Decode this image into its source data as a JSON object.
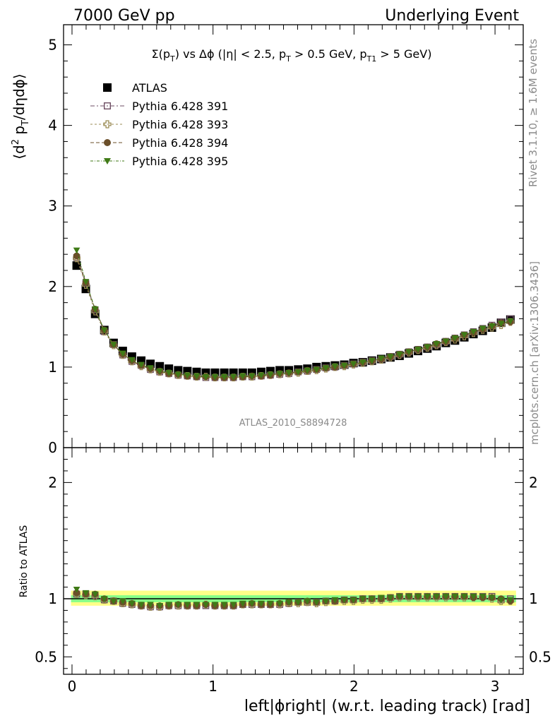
{
  "header": {
    "left": "7000 GeV pp",
    "right": "Underlying Event"
  },
  "side_labels": {
    "rivet": "Rivet 3.1.10, ≥ 1.6M events",
    "mcplots": "mcplots.cern.ch [arXiv:1306.3436]"
  },
  "chart_data": [
    {
      "type": "scatter",
      "title": "Σ(p_T) vs Δφ (|η| < 2.5, p_T > 0.5 GeV, p_T1 > 5 GeV)",
      "ylabel": "⟨d² p_T/dηdφ⟩",
      "xlabel": "",
      "watermark": "ATLAS_2010_S8894728",
      "xlim": [
        -0.06,
        3.2
      ],
      "ylim": [
        0,
        5.25
      ],
      "yticks": [
        0,
        1,
        2,
        3,
        4,
        5
      ],
      "legend_position": "top-left",
      "x": [
        0.033,
        0.098,
        0.164,
        0.229,
        0.295,
        0.36,
        0.425,
        0.491,
        0.556,
        0.622,
        0.687,
        0.753,
        0.818,
        0.884,
        0.949,
        1.014,
        1.08,
        1.145,
        1.211,
        1.276,
        1.342,
        1.407,
        1.473,
        1.538,
        1.604,
        1.669,
        1.734,
        1.8,
        1.865,
        1.931,
        1.996,
        2.062,
        2.127,
        2.193,
        2.258,
        2.323,
        2.389,
        2.454,
        2.52,
        2.585,
        2.651,
        2.716,
        2.782,
        2.847,
        2.913,
        2.978,
        3.043,
        3.109
      ],
      "series": [
        {
          "name": "ATLAS",
          "color": "#000000",
          "marker": "filled-square",
          "values": [
            2.26,
            1.97,
            1.66,
            1.46,
            1.3,
            1.2,
            1.13,
            1.08,
            1.04,
            1.01,
            0.98,
            0.96,
            0.95,
            0.94,
            0.93,
            0.93,
            0.93,
            0.93,
            0.93,
            0.93,
            0.94,
            0.95,
            0.96,
            0.96,
            0.97,
            0.98,
            1,
            1.01,
            1.02,
            1.03,
            1.05,
            1.06,
            1.08,
            1.1,
            1.12,
            1.14,
            1.17,
            1.2,
            1.23,
            1.26,
            1.3,
            1.33,
            1.37,
            1.41,
            1.45,
            1.49,
            1.55,
            1.59
          ]
        },
        {
          "name": "Pythia 6.428 391",
          "color": "#6e4e63",
          "marker": "open-square",
          "values": [
            2.36,
            2.04,
            1.71,
            1.44,
            1.28,
            1.15,
            1.07,
            1.02,
            0.97,
            0.94,
            0.92,
            0.9,
            0.89,
            0.88,
            0.87,
            0.87,
            0.87,
            0.87,
            0.88,
            0.88,
            0.89,
            0.9,
            0.91,
            0.92,
            0.94,
            0.95,
            0.97,
            0.99,
            1.0,
            1.02,
            1.04,
            1.06,
            1.08,
            1.1,
            1.13,
            1.16,
            1.19,
            1.22,
            1.25,
            1.28,
            1.32,
            1.36,
            1.4,
            1.44,
            1.48,
            1.52,
            1.56,
            1.6
          ]
        },
        {
          "name": "Pythia 6.428 393",
          "color": "#9b8c55",
          "marker": "open-cross",
          "values": [
            2.35,
            2.02,
            1.69,
            1.44,
            1.27,
            1.15,
            1.07,
            1.01,
            0.97,
            0.94,
            0.92,
            0.9,
            0.89,
            0.88,
            0.88,
            0.87,
            0.87,
            0.87,
            0.88,
            0.88,
            0.89,
            0.9,
            0.91,
            0.92,
            0.93,
            0.95,
            0.96,
            0.98,
            1.0,
            1.01,
            1.03,
            1.05,
            1.07,
            1.09,
            1.12,
            1.15,
            1.18,
            1.21,
            1.24,
            1.27,
            1.31,
            1.34,
            1.38,
            1.42,
            1.46,
            1.49,
            1.52,
            1.56
          ]
        },
        {
          "name": "Pythia 6.428 394",
          "color": "#6b4f2a",
          "marker": "filled-circle",
          "values": [
            2.38,
            2.05,
            1.72,
            1.46,
            1.28,
            1.16,
            1.08,
            1.02,
            0.98,
            0.95,
            0.92,
            0.91,
            0.89,
            0.88,
            0.88,
            0.87,
            0.87,
            0.87,
            0.88,
            0.89,
            0.89,
            0.9,
            0.92,
            0.93,
            0.94,
            0.96,
            0.97,
            0.99,
            1.0,
            1.02,
            1.04,
            1.06,
            1.08,
            1.1,
            1.13,
            1.16,
            1.19,
            1.22,
            1.25,
            1.29,
            1.32,
            1.36,
            1.4,
            1.43,
            1.47,
            1.51,
            1.55,
            1.56
          ]
        },
        {
          "name": "Pythia 6.428 395",
          "color": "#3f7a16",
          "marker": "filled-triangle-down",
          "values": [
            2.45,
            2.06,
            1.72,
            1.46,
            1.28,
            1.17,
            1.09,
            1.03,
            0.99,
            0.95,
            0.93,
            0.91,
            0.9,
            0.89,
            0.88,
            0.88,
            0.88,
            0.88,
            0.89,
            0.89,
            0.9,
            0.91,
            0.92,
            0.93,
            0.94,
            0.96,
            0.97,
            0.99,
            1.01,
            1.02,
            1.04,
            1.06,
            1.08,
            1.11,
            1.13,
            1.16,
            1.19,
            1.22,
            1.25,
            1.29,
            1.32,
            1.36,
            1.4,
            1.44,
            1.48,
            1.51,
            1.54,
            1.57
          ]
        }
      ]
    },
    {
      "type": "scatter",
      "ylabel": "Ratio to ATLAS",
      "xlabel": "left|ϕright| (w.r.t. leading track) [rad]",
      "xlim": [
        -0.06,
        3.2
      ],
      "ylim": [
        0.35,
        2.3
      ],
      "yticks": [
        0.5,
        1,
        2
      ],
      "xticks": [
        0,
        1,
        2,
        3
      ],
      "x": [
        0.033,
        0.098,
        0.164,
        0.229,
        0.295,
        0.36,
        0.425,
        0.491,
        0.556,
        0.622,
        0.687,
        0.753,
        0.818,
        0.884,
        0.949,
        1.014,
        1.08,
        1.145,
        1.211,
        1.276,
        1.342,
        1.407,
        1.473,
        1.538,
        1.604,
        1.669,
        1.734,
        1.8,
        1.865,
        1.931,
        1.996,
        2.062,
        2.127,
        2.193,
        2.258,
        2.323,
        2.389,
        2.454,
        2.52,
        2.585,
        2.651,
        2.716,
        2.782,
        2.847,
        2.913,
        2.978,
        3.043,
        3.109
      ],
      "bands": [
        {
          "color": "#ffff88",
          "lo": 0.94,
          "hi": 1.07
        },
        {
          "color": "#88ff88",
          "lo": 0.97,
          "hi": 1.03
        }
      ],
      "series": [
        {
          "name": "Pythia 6.428 391",
          "color": "#6e4e63",
          "marker": "open-square",
          "values": [
            1.04,
            1.04,
            1.03,
            0.99,
            0.98,
            0.96,
            0.95,
            0.94,
            0.93,
            0.93,
            0.94,
            0.94,
            0.94,
            0.94,
            0.94,
            0.94,
            0.94,
            0.94,
            0.95,
            0.95,
            0.95,
            0.95,
            0.95,
            0.96,
            0.97,
            0.97,
            0.97,
            0.98,
            0.98,
            0.99,
            0.99,
            1.0,
            1.0,
            1.0,
            1.01,
            1.02,
            1.02,
            1.02,
            1.02,
            1.02,
            1.02,
            1.02,
            1.02,
            1.02,
            1.02,
            1.02,
            0.99,
            1.0
          ]
        },
        {
          "name": "Pythia 6.428 393",
          "color": "#9b8c55",
          "marker": "open-cross",
          "values": [
            1.04,
            1.03,
            1.02,
            0.99,
            0.98,
            0.96,
            0.95,
            0.94,
            0.93,
            0.93,
            0.94,
            0.94,
            0.94,
            0.94,
            0.95,
            0.94,
            0.94,
            0.94,
            0.95,
            0.95,
            0.95,
            0.95,
            0.95,
            0.96,
            0.96,
            0.97,
            0.96,
            0.97,
            0.98,
            0.98,
            0.98,
            0.99,
            0.99,
            0.99,
            1.0,
            1.01,
            1.01,
            1.01,
            1.01,
            1.01,
            1.01,
            1.01,
            1.01,
            1.01,
            1.01,
            1.0,
            0.98,
            0.98
          ]
        },
        {
          "name": "Pythia 6.428 394",
          "color": "#6b4f2a",
          "marker": "filled-circle",
          "values": [
            1.05,
            1.04,
            1.04,
            1.0,
            0.98,
            0.97,
            0.96,
            0.94,
            0.94,
            0.94,
            0.94,
            0.95,
            0.94,
            0.94,
            0.95,
            0.94,
            0.94,
            0.94,
            0.95,
            0.96,
            0.95,
            0.95,
            0.96,
            0.97,
            0.97,
            0.98,
            0.97,
            0.98,
            0.98,
            0.99,
            0.99,
            1.0,
            1.0,
            1.0,
            1.01,
            1.02,
            1.02,
            1.02,
            1.02,
            1.02,
            1.02,
            1.02,
            1.02,
            1.01,
            1.01,
            1.01,
            1.0,
            0.98
          ]
        },
        {
          "name": "Pythia 6.428 395",
          "color": "#3f7a16",
          "marker": "filled-triangle-down",
          "values": [
            1.08,
            1.05,
            1.04,
            1.0,
            0.98,
            0.98,
            0.96,
            0.95,
            0.95,
            0.94,
            0.95,
            0.95,
            0.95,
            0.95,
            0.95,
            0.95,
            0.95,
            0.95,
            0.96,
            0.96,
            0.96,
            0.96,
            0.96,
            0.97,
            0.97,
            0.98,
            0.97,
            0.98,
            0.99,
            0.99,
            0.99,
            1.0,
            1.0,
            1.01,
            1.01,
            1.02,
            1.02,
            1.02,
            1.02,
            1.02,
            1.02,
            1.02,
            1.02,
            1.02,
            1.02,
            1.01,
            0.99,
            0.99
          ]
        }
      ]
    }
  ]
}
